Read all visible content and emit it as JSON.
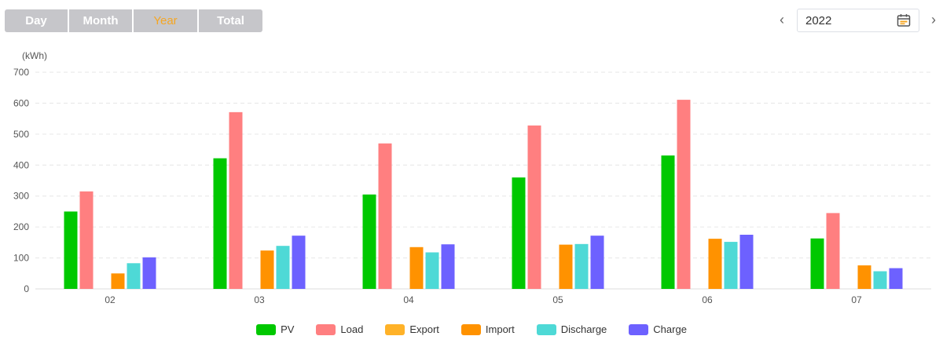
{
  "period_tabs": [
    {
      "label": "Day",
      "active": false
    },
    {
      "label": "Month",
      "active": false
    },
    {
      "label": "Year",
      "active": true
    },
    {
      "label": "Total",
      "active": false
    }
  ],
  "colors": {
    "tab_bg": "#c6c6ca",
    "tab_active_text": "#f5a623",
    "tab_text": "#ffffff"
  },
  "year_picker": {
    "value": "2022",
    "prev_icon": "chevron-left-icon",
    "next_icon": "chevron-right-icon",
    "calendar_icon": "calendar-icon"
  },
  "chart_data": {
    "type": "bar",
    "unit_label": "(kWh)",
    "ylim": [
      0,
      700
    ],
    "yticks": [
      0,
      100,
      200,
      300,
      400,
      500,
      600,
      700
    ],
    "grid": true,
    "legend_position": "bottom",
    "categories": [
      "02",
      "03",
      "04",
      "05",
      "06",
      "07"
    ],
    "series": [
      {
        "name": "PV",
        "color": "#00c800",
        "values": [
          250,
          422,
          305,
          360,
          431,
          163
        ]
      },
      {
        "name": "Load",
        "color": "#ff7f80",
        "values": [
          315,
          571,
          470,
          528,
          611,
          245
        ]
      },
      {
        "name": "Export",
        "color": "#ffb228",
        "values": [
          0,
          0,
          0,
          0,
          0,
          0
        ]
      },
      {
        "name": "Import",
        "color": "#ff9200",
        "values": [
          50,
          124,
          135,
          143,
          162,
          76
        ]
      },
      {
        "name": "Discharge",
        "color": "#4ed9d6",
        "values": [
          83,
          139,
          118,
          145,
          152,
          57
        ]
      },
      {
        "name": "Charge",
        "color": "#6d61ff",
        "values": [
          102,
          172,
          144,
          172,
          175,
          67
        ]
      }
    ]
  }
}
